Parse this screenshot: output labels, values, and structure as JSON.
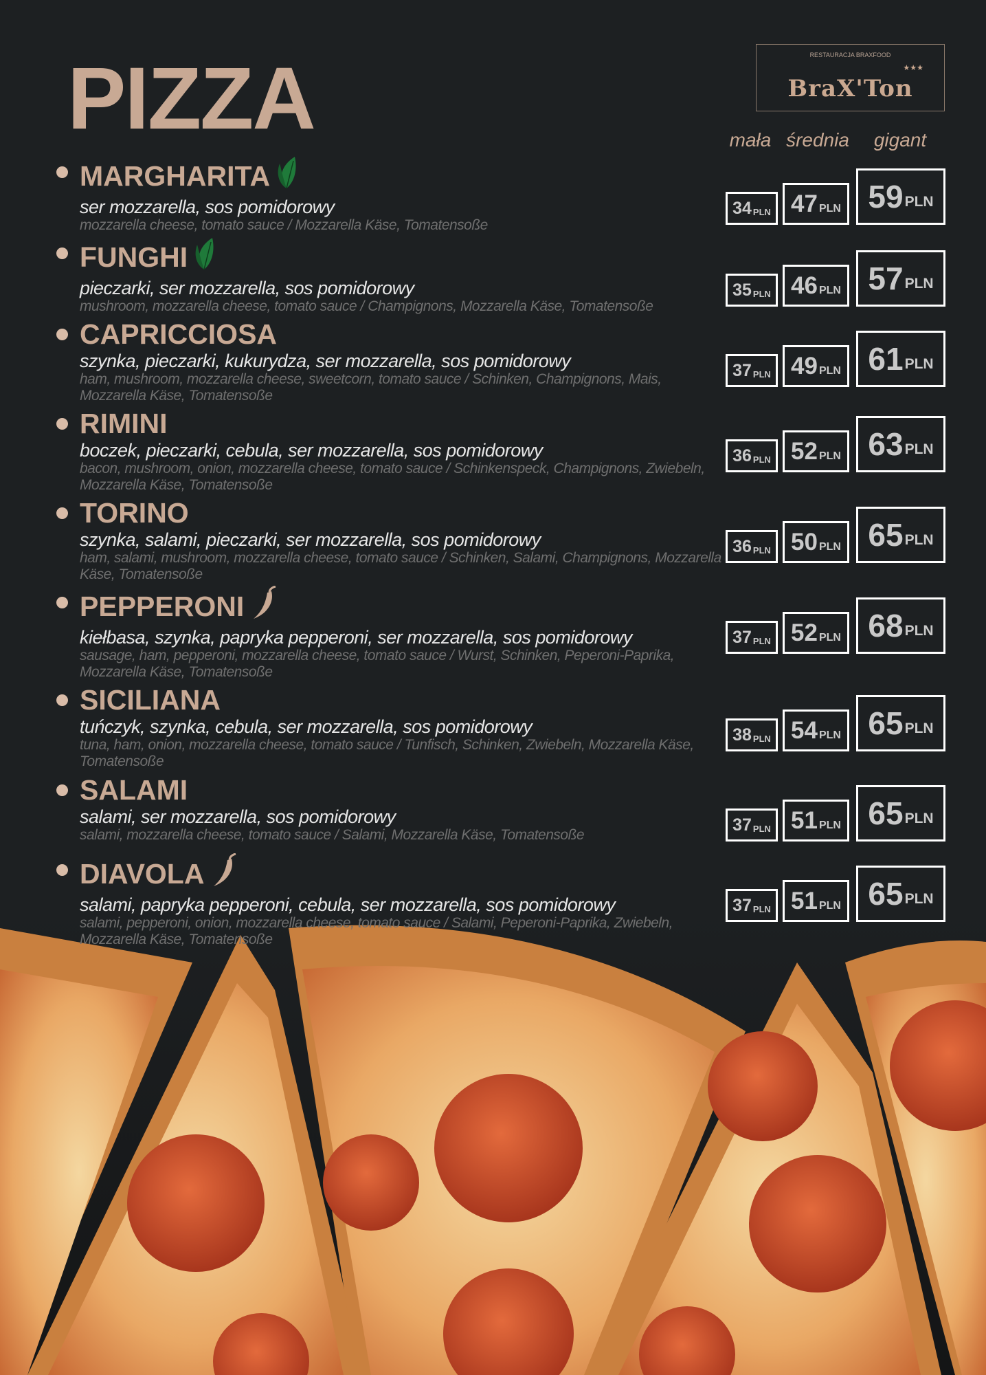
{
  "title": "PIZZA",
  "logo": {
    "subtitle": "RESTAURACJA BRAXFOOD",
    "brand": "BraX'Ton",
    "stars": "★★★"
  },
  "columns": [
    "mała",
    "średnia",
    "gigant"
  ],
  "currency": "PLN",
  "items": [
    {
      "name": "MARGHARITA",
      "icon": "leaf-icon",
      "pl": "ser mozzarella, sos pomidorowy",
      "en": "mozzarella cheese, tomato sauce / Mozzarella Käse, Tomatensoße",
      "prices": [
        "34",
        "47",
        "59"
      ]
    },
    {
      "name": "FUNGHI",
      "icon": "leaf-icon",
      "pl": "pieczarki, ser mozzarella, sos pomidorowy",
      "en": "mushroom, mozzarella cheese, tomato sauce / Champignons, Mozzarella Käse, Tomatensoße",
      "prices": [
        "35",
        "46",
        "57"
      ]
    },
    {
      "name": "CAPRICCIOSA",
      "icon": "",
      "pl": "szynka, pieczarki, kukurydza, ser mozzarella, sos pomidorowy",
      "en": "ham, mushroom, mozzarella cheese, sweetcorn, tomato sauce / Schinken, Champignons, Mais, Mozzarella Käse, Tomatensoße",
      "prices": [
        "37",
        "49",
        "61"
      ]
    },
    {
      "name": "RIMINI",
      "icon": "",
      "pl": "boczek, pieczarki, cebula, ser mozzarella, sos pomidorowy",
      "en": "bacon, mushroom, onion, mozzarella cheese, tomato sauce / Schinkenspeck, Champignons, Zwiebeln, Mozzarella Käse, Tomatensoße",
      "prices": [
        "36",
        "52",
        "63"
      ]
    },
    {
      "name": "TORINO",
      "icon": "",
      "pl": "szynka, salami, pieczarki, ser mozzarella, sos pomidorowy",
      "en": "ham, salami, mushroom, mozzarella cheese, tomato sauce / Schinken, Salami, Champignons, Mozzarella Käse, Tomatensoße",
      "prices": [
        "36",
        "50",
        "65"
      ]
    },
    {
      "name": "PEPPERONI",
      "icon": "chili-icon",
      "pl": "kiełbasa, szynka, papryka pepperoni, ser mozzarella, sos pomidorowy",
      "en": "sausage, ham, pepperoni, mozzarella cheese, tomato sauce / Wurst, Schinken, Peperoni-Paprika, Mozzarella Käse, Tomatensoße",
      "prices": [
        "37",
        "52",
        "68"
      ]
    },
    {
      "name": "SICILIANA",
      "icon": "",
      "pl": "tuńczyk, szynka, cebula, ser mozzarella, sos pomidorowy",
      "en": "tuna, ham, onion, mozzarella cheese, tomato sauce / Tunfisch, Schinken, Zwiebeln, Mozzarella Käse, Tomatensoße",
      "prices": [
        "38",
        "54",
        "65"
      ]
    },
    {
      "name": "SALAMI",
      "icon": "",
      "pl": "salami, ser mozzarella, sos pomidorowy",
      "en": "salami, mozzarella cheese, tomato sauce / Salami, Mozzarella Käse, Tomatensoße",
      "prices": [
        "37",
        "51",
        "65"
      ]
    },
    {
      "name": "DIAVOLA",
      "icon": "chili-icon",
      "pl": "salami, papryka pepperoni, cebula, ser mozzarella, sos pomidorowy",
      "en": "salami, pepperoni, onion, mozzarella cheese, tomato sauce / Salami, Peperoni-Paprika, Zwiebeln, Mozzarella Käse, Tomatensoße",
      "prices": [
        "37",
        "51",
        "65"
      ]
    }
  ],
  "colors": {
    "background": "#1d2022",
    "accent": "#c8a994",
    "leaf": "#1f7a3a",
    "chili": "#c8a994"
  }
}
